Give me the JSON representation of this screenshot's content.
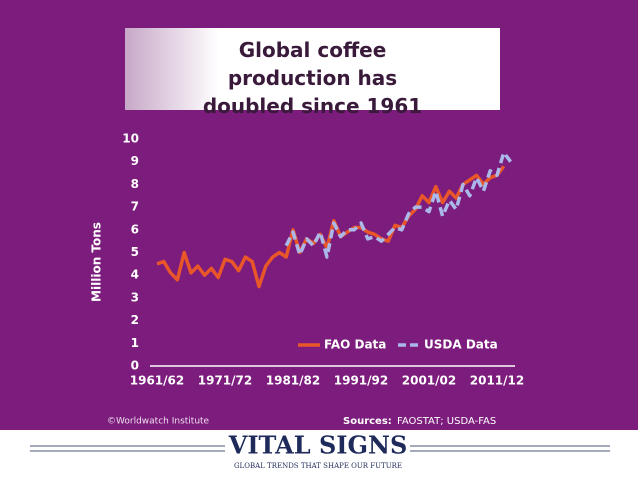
{
  "chart_data": {
    "type": "line",
    "title": "Global coffee production has doubled since 1961",
    "y_label": "Million Tons",
    "categories": [
      "1961/62",
      null,
      null,
      null,
      null,
      null,
      null,
      null,
      null,
      null,
      "1971/72",
      null,
      null,
      null,
      null,
      null,
      null,
      null,
      null,
      null,
      "1981/82",
      null,
      null,
      null,
      null,
      null,
      null,
      null,
      null,
      null,
      "1991/92",
      null,
      null,
      null,
      null,
      null,
      null,
      null,
      null,
      null,
      "2001/02",
      null,
      null,
      null,
      null,
      null,
      null,
      null,
      null,
      null,
      "2011/12",
      null,
      null
    ],
    "series": [
      {
        "name": "FAO Data",
        "color": "#e8562a",
        "dash": false,
        "values": [
          4.5,
          4.6,
          4.1,
          3.8,
          5.0,
          4.1,
          4.4,
          4.0,
          4.3,
          3.9,
          4.7,
          4.6,
          4.2,
          4.8,
          4.6,
          3.5,
          4.4,
          4.8,
          5.0,
          4.8,
          6.0,
          5.0,
          5.6,
          5.4,
          5.8,
          5.2,
          6.4,
          5.7,
          5.9,
          6.1,
          6.1,
          5.9,
          5.8,
          5.6,
          5.5,
          6.2,
          6.1,
          6.6,
          6.9,
          7.5,
          7.2,
          7.9,
          7.2,
          7.7,
          7.4,
          8.0,
          8.2,
          8.4,
          8.0,
          8.3,
          8.4,
          8.8,
          null
        ]
      },
      {
        "name": "USDA Data",
        "color": "#aab8ea",
        "dash": true,
        "values": [
          null,
          null,
          null,
          null,
          null,
          null,
          null,
          null,
          null,
          null,
          null,
          null,
          null,
          null,
          null,
          null,
          null,
          null,
          null,
          5.3,
          5.9,
          4.9,
          5.6,
          5.3,
          5.9,
          4.8,
          6.3,
          5.7,
          6.0,
          6.0,
          6.3,
          5.6,
          5.7,
          5.5,
          5.8,
          6.1,
          6.0,
          6.7,
          7.0,
          7.0,
          6.8,
          7.7,
          6.6,
          7.3,
          6.9,
          8.0,
          7.5,
          8.3,
          7.7,
          8.6,
          8.4,
          9.4,
          9.0
        ]
      }
    ],
    "ylim": [
      0,
      10
    ],
    "yticks": [
      0,
      1,
      2,
      3,
      4,
      5,
      6,
      7,
      8,
      9,
      10
    ],
    "grid": false,
    "legend": "lower right"
  },
  "footer": {
    "credit": "©Worldwatch Institute",
    "sources_label": "Sources:",
    "sources_text": "FAOSTAT; USDA-FAS",
    "logo": "VITAL SIGNS",
    "tagline": "GLOBAL TRENDS THAT SHAPE OUR FUTURE"
  }
}
